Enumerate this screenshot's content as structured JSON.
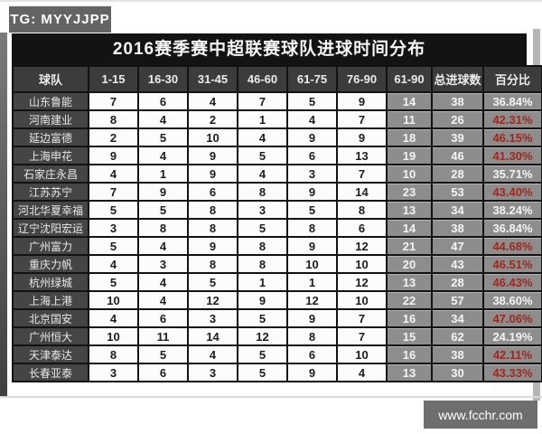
{
  "page": {
    "tg_badge": "TG: MYYJJPP",
    "site_badge": "www.fcchr.com"
  },
  "colors": {
    "title_bar_bg": "#131313",
    "header_bg": "#3c3c3c",
    "team_col_bg": "#454545",
    "right_cols_bg": "#8d8d8d",
    "data_cell_bg": "#fcfcfc",
    "red_pct_text": "#9b2920",
    "white_text": "#f4f4f4",
    "badge_bg": "#646464"
  },
  "chart_data": {
    "type": "table",
    "title": "2016赛季赛中超联赛球队进球时间分布",
    "columns": [
      "球队",
      "1-15",
      "16-30",
      "31-45",
      "46-60",
      "61-75",
      "76-90",
      "61-90",
      "总进球数",
      "百分比"
    ],
    "rows": [
      {
        "team": "山东鲁能",
        "values": [
          7,
          6,
          4,
          7,
          5,
          9
        ],
        "late": 14,
        "total": 38,
        "pct": "36.84%",
        "pct_red": false
      },
      {
        "team": "河南建业",
        "values": [
          8,
          4,
          2,
          1,
          4,
          7
        ],
        "late": 11,
        "total": 26,
        "pct": "42.31%",
        "pct_red": true
      },
      {
        "team": "延边富德",
        "values": [
          2,
          5,
          10,
          4,
          9,
          9
        ],
        "late": 18,
        "total": 39,
        "pct": "46.15%",
        "pct_red": true
      },
      {
        "team": "上海申花",
        "values": [
          9,
          4,
          9,
          5,
          6,
          13
        ],
        "late": 19,
        "total": 46,
        "pct": "41.30%",
        "pct_red": true
      },
      {
        "team": "石家庄永昌",
        "values": [
          4,
          1,
          9,
          4,
          3,
          7
        ],
        "late": 10,
        "total": 28,
        "pct": "35.71%",
        "pct_red": false
      },
      {
        "team": "江苏苏宁",
        "values": [
          7,
          9,
          6,
          8,
          9,
          14
        ],
        "late": 23,
        "total": 53,
        "pct": "43.40%",
        "pct_red": true
      },
      {
        "team": "河北华夏幸福",
        "values": [
          5,
          5,
          8,
          3,
          5,
          8
        ],
        "late": 13,
        "total": 34,
        "pct": "38.24%",
        "pct_red": false
      },
      {
        "team": "辽宁沈阳宏运",
        "values": [
          3,
          8,
          8,
          5,
          8,
          6
        ],
        "late": 14,
        "total": 38,
        "pct": "36.84%",
        "pct_red": false
      },
      {
        "team": "广州富力",
        "values": [
          5,
          4,
          9,
          8,
          9,
          12
        ],
        "late": 21,
        "total": 47,
        "pct": "44.68%",
        "pct_red": true
      },
      {
        "team": "重庆力帆",
        "values": [
          4,
          3,
          8,
          8,
          10,
          10
        ],
        "late": 20,
        "total": 43,
        "pct": "46.51%",
        "pct_red": true
      },
      {
        "team": "杭州绿城",
        "values": [
          5,
          4,
          5,
          1,
          1,
          12
        ],
        "late": 13,
        "total": 28,
        "pct": "46.43%",
        "pct_red": true
      },
      {
        "team": "上海上港",
        "values": [
          10,
          4,
          12,
          9,
          12,
          10
        ],
        "late": 22,
        "total": 57,
        "pct": "38.60%",
        "pct_red": false
      },
      {
        "team": "北京国安",
        "values": [
          4,
          6,
          3,
          5,
          9,
          7
        ],
        "late": 16,
        "total": 34,
        "pct": "47.06%",
        "pct_red": true
      },
      {
        "team": "广州恒大",
        "values": [
          10,
          11,
          14,
          12,
          8,
          7
        ],
        "late": 15,
        "total": 62,
        "pct": "24.19%",
        "pct_red": false
      },
      {
        "team": "天津泰达",
        "values": [
          8,
          5,
          4,
          5,
          6,
          10
        ],
        "late": 16,
        "total": 38,
        "pct": "42.11%",
        "pct_red": true
      },
      {
        "team": "长春亚泰",
        "values": [
          3,
          6,
          3,
          5,
          9,
          4
        ],
        "late": 13,
        "total": 30,
        "pct": "43.33%",
        "pct_red": true
      }
    ]
  }
}
